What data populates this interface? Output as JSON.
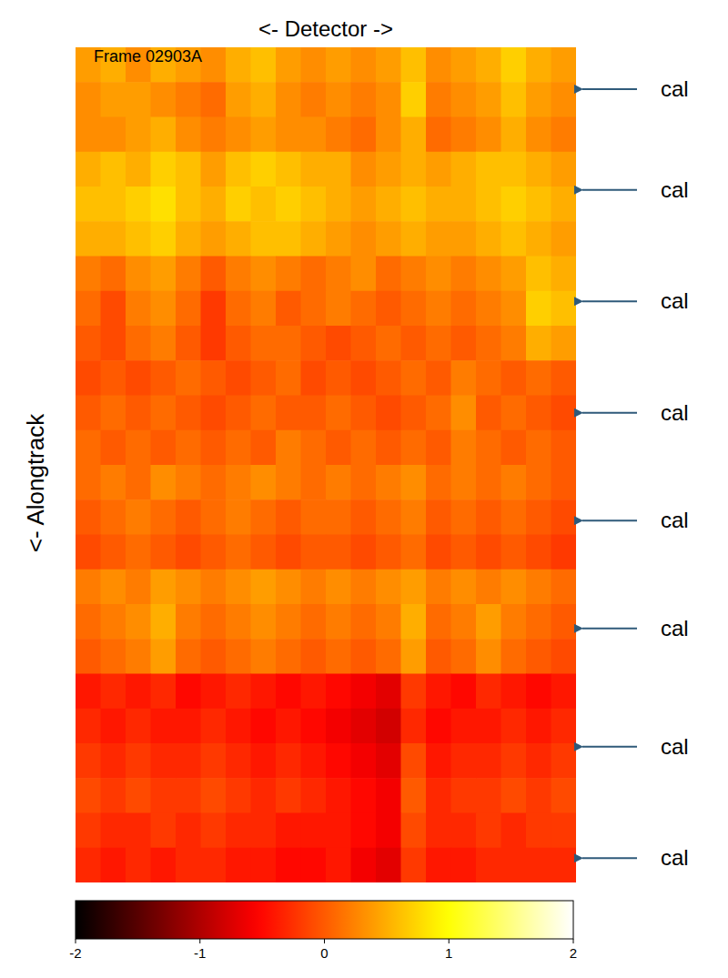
{
  "chart_data": {
    "type": "heatmap",
    "title": "<- Detector ->",
    "y_label": "<- Alongtrack",
    "annotation": "Frame 02903A",
    "color": "hot",
    "tick_labels": false,
    "markers": [
      {
        "label": "cal",
        "row": 1.2
      },
      {
        "label": "cal",
        "row": 4.1
      },
      {
        "label": "cal",
        "row": 7.3
      },
      {
        "label": "cal",
        "row": 10.5
      },
      {
        "label": "cal",
        "row": 13.6
      },
      {
        "label": "cal",
        "row": 16.7
      },
      {
        "label": "cal",
        "row": 20.1
      },
      {
        "label": "cal",
        "row": 23.3
      }
    ],
    "cells": [
      [
        0.4,
        0.5,
        0.3,
        0.5,
        0.4,
        0.3,
        0.5,
        0.6,
        0.4,
        0.3,
        0.4,
        0.3,
        0.4,
        0.6,
        0.3,
        0.4,
        0.5,
        0.7,
        0.5,
        0.4
      ],
      [
        0.3,
        0.4,
        0.4,
        0.3,
        0.2,
        0.1,
        0.4,
        0.5,
        0.3,
        0.2,
        0.3,
        0.2,
        0.3,
        0.7,
        0.2,
        0.3,
        0.4,
        0.6,
        0.4,
        0.3
      ],
      [
        0.3,
        0.3,
        0.4,
        0.5,
        0.3,
        0.2,
        0.3,
        0.4,
        0.3,
        0.3,
        0.2,
        0.1,
        0.3,
        0.5,
        0.1,
        0.2,
        0.3,
        0.5,
        0.3,
        0.2
      ],
      [
        0.5,
        0.6,
        0.5,
        0.7,
        0.6,
        0.4,
        0.6,
        0.7,
        0.6,
        0.5,
        0.5,
        0.3,
        0.4,
        0.5,
        0.4,
        0.5,
        0.6,
        0.6,
        0.5,
        0.4
      ],
      [
        0.6,
        0.6,
        0.7,
        0.8,
        0.6,
        0.5,
        0.7,
        0.6,
        0.7,
        0.6,
        0.5,
        0.4,
        0.5,
        0.6,
        0.5,
        0.5,
        0.6,
        0.7,
        0.6,
        0.5
      ],
      [
        0.5,
        0.5,
        0.6,
        0.7,
        0.5,
        0.4,
        0.5,
        0.6,
        0.6,
        0.5,
        0.4,
        0.3,
        0.4,
        0.5,
        0.4,
        0.4,
        0.5,
        0.6,
        0.5,
        0.4
      ],
      [
        0.2,
        0.1,
        0.3,
        0.4,
        0.2,
        0.0,
        0.2,
        0.3,
        0.2,
        0.1,
        0.2,
        0.3,
        0.1,
        0.2,
        0.3,
        0.2,
        0.3,
        0.4,
        0.6,
        0.5
      ],
      [
        0.1,
        -0.1,
        0.2,
        0.3,
        0.1,
        -0.2,
        0.1,
        0.2,
        0.0,
        0.1,
        0.2,
        0.1,
        0.0,
        0.1,
        0.2,
        0.1,
        0.2,
        0.3,
        0.7,
        0.6
      ],
      [
        0.0,
        -0.1,
        0.1,
        0.2,
        0.0,
        -0.2,
        0.0,
        0.1,
        0.1,
        0.0,
        -0.1,
        0.0,
        0.1,
        0.0,
        0.1,
        0.0,
        0.1,
        0.2,
        0.5,
        0.4
      ],
      [
        -0.1,
        0.0,
        -0.1,
        0.0,
        0.1,
        0.0,
        -0.1,
        0.0,
        0.1,
        -0.1,
        0.0,
        -0.1,
        0.0,
        0.1,
        0.0,
        0.2,
        0.1,
        0.0,
        0.1,
        0.0
      ],
      [
        0.0,
        0.1,
        0.0,
        0.1,
        0.0,
        -0.1,
        0.0,
        0.1,
        0.0,
        0.0,
        0.1,
        0.0,
        -0.1,
        0.0,
        0.1,
        0.3,
        0.0,
        0.1,
        0.0,
        -0.1
      ],
      [
        0.1,
        0.0,
        0.1,
        0.0,
        0.1,
        0.0,
        0.1,
        0.0,
        0.2,
        0.1,
        0.0,
        0.1,
        0.0,
        0.1,
        0.0,
        0.2,
        0.1,
        0.0,
        0.1,
        0.0
      ],
      [
        0.1,
        0.2,
        0.1,
        0.3,
        0.2,
        0.1,
        0.2,
        0.3,
        0.2,
        0.1,
        0.2,
        0.1,
        0.2,
        0.3,
        0.1,
        0.2,
        0.1,
        0.2,
        0.1,
        0.0
      ],
      [
        0.0,
        0.1,
        0.2,
        0.1,
        0.0,
        0.1,
        0.2,
        0.1,
        0.0,
        0.1,
        0.1,
        0.0,
        0.1,
        0.2,
        0.0,
        0.1,
        0.0,
        0.1,
        0.0,
        -0.1
      ],
      [
        -0.1,
        0.0,
        0.1,
        0.0,
        -0.1,
        0.0,
        0.1,
        0.0,
        -0.1,
        0.0,
        0.0,
        -0.1,
        0.0,
        0.1,
        -0.1,
        0.0,
        -0.1,
        0.0,
        -0.1,
        -0.2
      ],
      [
        0.2,
        0.3,
        0.2,
        0.4,
        0.3,
        0.2,
        0.3,
        0.4,
        0.3,
        0.2,
        0.3,
        0.2,
        0.3,
        0.4,
        0.2,
        0.3,
        0.2,
        0.3,
        0.2,
        0.1
      ],
      [
        0.1,
        0.2,
        0.3,
        0.5,
        0.2,
        0.1,
        0.2,
        0.3,
        0.2,
        0.1,
        0.2,
        0.1,
        0.2,
        0.5,
        0.1,
        0.2,
        0.4,
        0.2,
        0.1,
        0.0
      ],
      [
        0.0,
        0.1,
        0.2,
        0.4,
        0.1,
        0.0,
        0.1,
        0.2,
        0.1,
        0.0,
        0.1,
        0.0,
        0.1,
        0.4,
        0.0,
        0.1,
        0.3,
        0.1,
        0.0,
        -0.1
      ],
      [
        -0.4,
        -0.3,
        -0.4,
        -0.3,
        -0.5,
        -0.4,
        -0.3,
        -0.4,
        -0.5,
        -0.4,
        -0.5,
        -0.6,
        -0.7,
        -0.2,
        -0.4,
        -0.5,
        -0.3,
        -0.4,
        -0.5,
        -0.4
      ],
      [
        -0.3,
        -0.4,
        -0.3,
        -0.4,
        -0.4,
        -0.3,
        -0.4,
        -0.5,
        -0.4,
        -0.5,
        -0.6,
        -0.7,
        -0.8,
        -0.3,
        -0.5,
        -0.4,
        -0.4,
        -0.3,
        -0.4,
        -0.3
      ],
      [
        -0.2,
        -0.3,
        -0.2,
        -0.3,
        -0.3,
        -0.2,
        -0.3,
        -0.4,
        -0.3,
        -0.4,
        -0.5,
        -0.6,
        -0.7,
        -0.1,
        -0.4,
        -0.3,
        -0.3,
        -0.2,
        -0.3,
        -0.2
      ],
      [
        -0.1,
        -0.2,
        -0.1,
        -0.2,
        -0.2,
        -0.1,
        -0.2,
        -0.3,
        -0.2,
        -0.3,
        -0.4,
        -0.5,
        -0.6,
        0.0,
        -0.3,
        -0.2,
        -0.2,
        -0.1,
        -0.2,
        -0.1
      ],
      [
        -0.2,
        -0.3,
        -0.3,
        -0.2,
        -0.3,
        -0.2,
        -0.3,
        -0.3,
        -0.4,
        -0.4,
        -0.4,
        -0.5,
        -0.6,
        -0.1,
        -0.3,
        -0.3,
        -0.2,
        -0.3,
        -0.2,
        -0.2
      ],
      [
        -0.3,
        -0.4,
        -0.3,
        -0.4,
        -0.3,
        -0.3,
        -0.4,
        -0.4,
        -0.5,
        -0.5,
        -0.4,
        -0.6,
        -0.7,
        -0.2,
        -0.4,
        -0.4,
        -0.3,
        -0.3,
        -0.3,
        -0.3
      ]
    ],
    "colorbar": {
      "range": [
        -2,
        2
      ],
      "ticks": [
        -2,
        -1,
        0,
        1,
        2
      ]
    }
  }
}
